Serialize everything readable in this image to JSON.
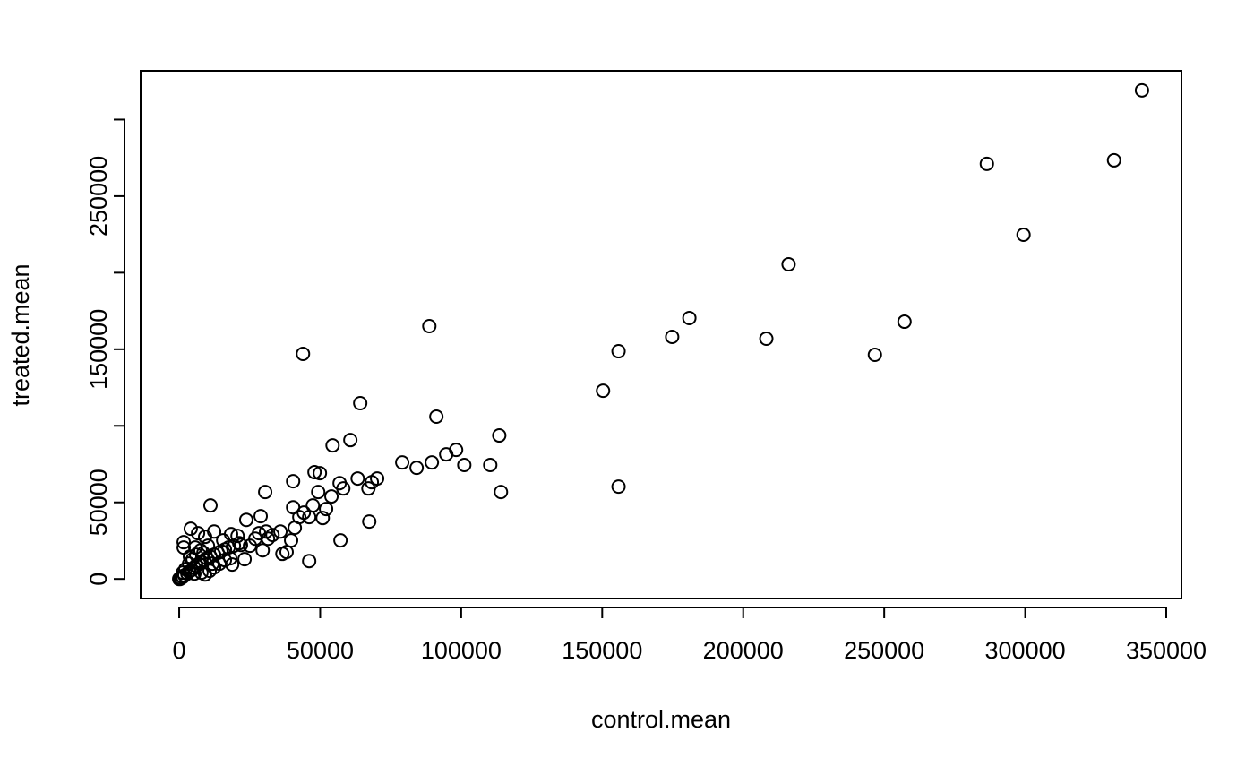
{
  "chart_data": {
    "type": "scatter",
    "x_label": "control.mean",
    "y_label": "treated.mean",
    "x": [
      341400,
      331500,
      286400,
      299400,
      216100,
      257200,
      180900,
      174800,
      208200,
      246700,
      155800,
      150300,
      155800,
      88700,
      43900,
      64200,
      91200,
      113500,
      98200,
      94700,
      101100,
      110300,
      79100,
      84200,
      89600,
      114100,
      60700,
      54400,
      48000,
      49900,
      40400,
      63300,
      70200,
      68300,
      56900,
      58200,
      67100,
      49300,
      54000,
      30500,
      11100,
      47400,
      52100,
      40400,
      46100,
      50900,
      42600,
      44200,
      67400,
      28900,
      41000,
      23800,
      57200,
      46100,
      39700,
      38100,
      36600,
      35900,
      33100,
      30800,
      28300,
      29600,
      31500,
      27000,
      4100,
      6700,
      9200,
      1600,
      1600,
      18400,
      20700,
      12400,
      15600,
      21900,
      25100,
      23200,
      18800,
      640,
      1300,
      1900,
      2900,
      3500,
      4500,
      5400,
      6000,
      7000,
      7900,
      8900,
      9900,
      11100,
      12400,
      13700,
      14900,
      16200,
      17500,
      19400,
      21300,
      1300,
      2200,
      3500,
      4800,
      6000,
      7600,
      9200,
      10800,
      12400,
      14300,
      16200,
      18100,
      0,
      300,
      1000,
      7900,
      5400,
      11800,
      3800,
      5700,
      8600,
      10200
    ],
    "values": [
      319100,
      273400,
      271100,
      224800,
      205500,
      168000,
      170400,
      158100,
      156900,
      146400,
      148700,
      122900,
      60300,
      165100,
      147000,
      114800,
      106000,
      93700,
      84300,
      81400,
      74400,
      74400,
      76100,
      72600,
      76100,
      56800,
      90700,
      87200,
      69700,
      69100,
      63800,
      65600,
      65600,
      63200,
      62600,
      59100,
      59100,
      56800,
      53900,
      56800,
      48000,
      48000,
      45700,
      46800,
      40400,
      39800,
      40400,
      43300,
      37500,
      41000,
      33400,
      38600,
      25200,
      11700,
      25200,
      17600,
      16400,
      31000,
      28700,
      31000,
      29900,
      18700,
      26300,
      26300,
      32800,
      29900,
      27500,
      24000,
      20500,
      29300,
      28100,
      31000,
      25200,
      22200,
      21700,
      12900,
      9400,
      600,
      1200,
      2300,
      3500,
      4700,
      5900,
      7000,
      8800,
      10000,
      11100,
      12300,
      13500,
      14600,
      15800,
      17000,
      18100,
      19300,
      20500,
      21700,
      23400,
      4100,
      6400,
      10000,
      12900,
      15800,
      18700,
      2900,
      5300,
      7600,
      10000,
      12300,
      13500,
      0,
      0,
      1800,
      4100,
      3500,
      10000,
      14600,
      20500,
      17000,
      21700
    ],
    "color": "#000000",
    "xlim": [
      -13668,
      355400
    ],
    "ylim": [
      -12764,
      331864
    ],
    "xticks": [
      0,
      50000,
      100000,
      150000,
      200000,
      250000,
      300000,
      350000
    ],
    "yticks": [
      0,
      50000,
      {
        "value": 100000,
        "label": null
      },
      150000,
      {
        "value": 200000,
        "label": null
      },
      250000,
      {
        "value": 300000,
        "label": null
      }
    ]
  }
}
